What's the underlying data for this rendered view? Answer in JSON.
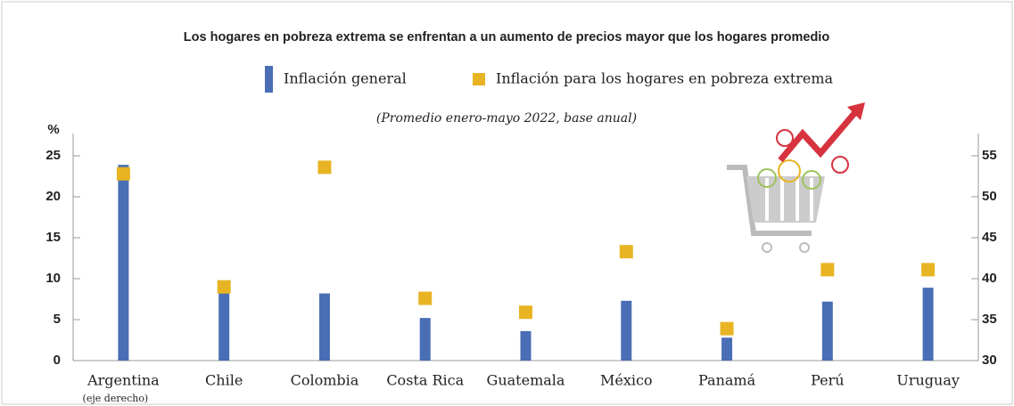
{
  "chart_data": {
    "type": "bar",
    "title": "Los hogares en pobreza extrema se enfrentan a un aumento de precios mayor que los hogares promedio",
    "subtitle": "(Promedio enero-mayo 2022, base anual)",
    "y_label": "%",
    "categories": [
      "Argentina",
      "Chile",
      "Colombia",
      "Costa Rica",
      "Guatemala",
      "México",
      "Panamá",
      "Perú",
      "Uruguay"
    ],
    "y2_category": 0,
    "y2_category_note": "(eje derecho)",
    "series": [
      {
        "name": "Inflación general",
        "color": "#4a6eb5",
        "values": [
          53.9,
          8.2,
          8.2,
          5.2,
          3.6,
          7.3,
          2.8,
          7.2,
          8.9
        ]
      },
      {
        "name": "Inflación para los hogares en pobreza extrema",
        "color": "#e8b423",
        "values": [
          52.8,
          9.0,
          23.6,
          7.6,
          5.9,
          13.3,
          3.9,
          11.1,
          11.1
        ]
      }
    ],
    "ylim": [
      0,
      25
    ],
    "yticks": [
      0,
      5,
      10,
      15,
      20,
      25
    ],
    "y2lim": [
      30,
      55
    ],
    "y2ticks": [
      30,
      35,
      40,
      45,
      50,
      55
    ]
  }
}
